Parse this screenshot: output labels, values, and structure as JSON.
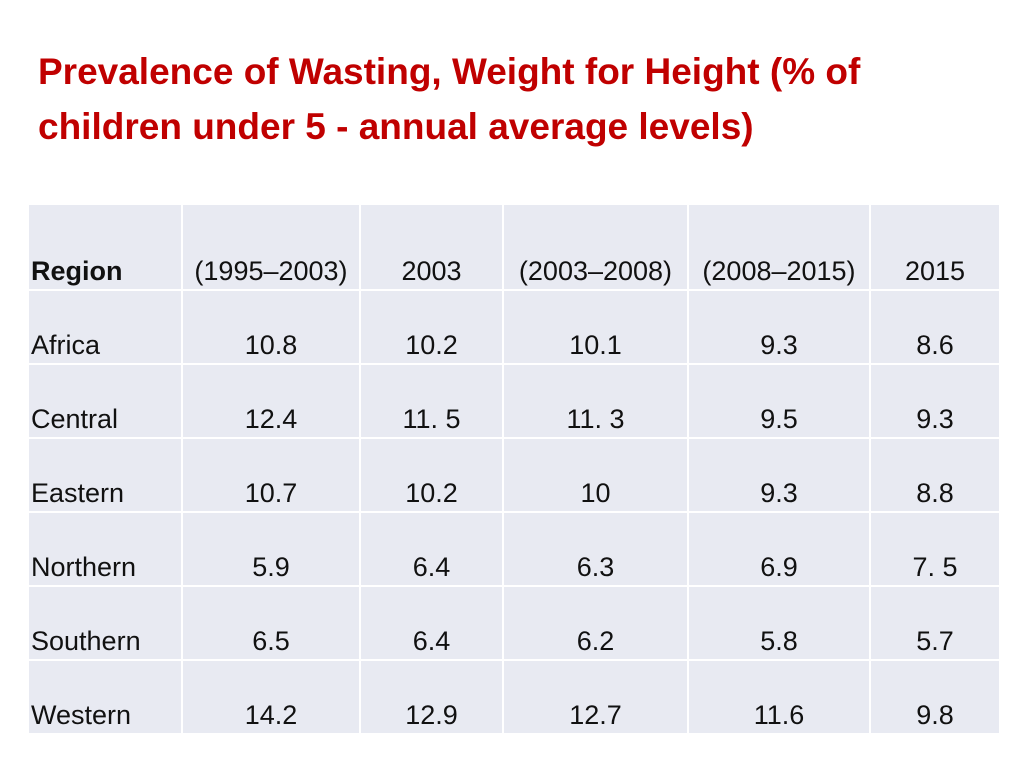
{
  "title": "Prevalence of Wasting, Weight for Height (% of children under 5 - annual average levels)",
  "table": {
    "headers": [
      "Region",
      "(1995–2003)",
      "2003",
      "(2003–2008)",
      "(2008–2015)",
      "2015"
    ],
    "rows": [
      [
        "Africa",
        "10.8",
        "10.2",
        "10.1",
        "9.3",
        "8.6"
      ],
      [
        "Central",
        "12.4",
        "11. 5",
        "11. 3",
        "9.5",
        "9.3"
      ],
      [
        "Eastern",
        "10.7",
        "10.2",
        "10",
        "9.3",
        "8.8"
      ],
      [
        "Northern",
        "5.9",
        "6.4",
        "6.3",
        "6.9",
        "7. 5"
      ],
      [
        "Southern",
        "6.5",
        "6.4",
        "6.2",
        "5.8",
        "5.7"
      ],
      [
        "Western",
        "14.2",
        "12.9",
        "12.7",
        "11.6",
        "9.8"
      ]
    ]
  },
  "colors": {
    "title": "#c00000",
    "cell_background": "#e8eaf2",
    "grid_lines": "#ffffff"
  }
}
